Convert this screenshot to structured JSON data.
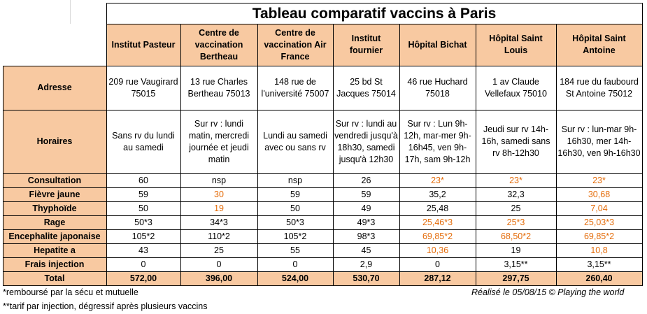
{
  "title": "Tableau comparatif vaccins à Paris",
  "columns": [
    "Institut Pasteur",
    "Centre de vaccination Bertheau",
    "Centre de vaccination Air France",
    "Institut fournier",
    "Hôpital Bichat",
    "Hôpital Saint Louis",
    "Hôpital Saint Antoine"
  ],
  "rows": [
    {
      "label": "Adresse",
      "cells": [
        {
          "text": "209 rue Vaugirard 75015"
        },
        {
          "text": "13 rue Charles Bertheau 75013"
        },
        {
          "text": "148 rue de l'université 75007"
        },
        {
          "text": "25 bd St Jacques 75014"
        },
        {
          "text": "46 rue Huchard 75018"
        },
        {
          "text": "1 av Claude Vellefaux 75010"
        },
        {
          "text": "184 rue du faubourd St Antoine 75012"
        }
      ]
    },
    {
      "label": "Horaires",
      "cells": [
        {
          "text": "Sans rv du lundi au samedi"
        },
        {
          "text": "Sur rv : lundi matin, mercredi journée et jeudi matin"
        },
        {
          "text": "Lundi au samedi avec ou sans rv"
        },
        {
          "text": "Sur rv : lundi au vendredi jusqu'à 18h30, samedi jusqu'à 12h30"
        },
        {
          "text": "Sur rv : Lun 9h-12h, mar-mer 9h-16h45, ven 9h-17h, sam 9h-12h"
        },
        {
          "text": "Jeudi sur rv 14h-16h, samedi sans rv 8h-12h30"
        },
        {
          "text": "Sur rv : lun-mar 9h-16h30, mer 14h-16h30, ven 9h-16h30"
        }
      ]
    },
    {
      "label": "Consultation",
      "cells": [
        {
          "text": "60"
        },
        {
          "text": "nsp"
        },
        {
          "text": "nsp"
        },
        {
          "text": "26"
        },
        {
          "text": "23*",
          "orange": true
        },
        {
          "text": "23*",
          "orange": true
        },
        {
          "text": "23*",
          "orange": true
        }
      ]
    },
    {
      "label": "Fièvre jaune",
      "cells": [
        {
          "text": "59"
        },
        {
          "text": "30",
          "orange": true
        },
        {
          "text": "59"
        },
        {
          "text": "59"
        },
        {
          "text": "35,2"
        },
        {
          "text": "32,3"
        },
        {
          "text": "30,68",
          "orange": true
        }
      ]
    },
    {
      "label": "Thyphoïde",
      "cells": [
        {
          "text": "50"
        },
        {
          "text": "19",
          "orange": true
        },
        {
          "text": "50"
        },
        {
          "text": "49"
        },
        {
          "text": "25,48"
        },
        {
          "text": "25"
        },
        {
          "text": "7,04",
          "orange": true
        }
      ]
    },
    {
      "label": "Rage",
      "cells": [
        {
          "text": "50*3"
        },
        {
          "text": "34*3"
        },
        {
          "text": "50*3"
        },
        {
          "text": "49*3"
        },
        {
          "text": "25,46*3",
          "orange": true
        },
        {
          "text": "25*3",
          "orange": true
        },
        {
          "text": "25,03*3",
          "orange": true
        }
      ]
    },
    {
      "label": "Encephalite japonaise",
      "cells": [
        {
          "text": "105*2"
        },
        {
          "text": "110*2"
        },
        {
          "text": "105*2"
        },
        {
          "text": "98*3"
        },
        {
          "text": "69,85*2",
          "orange": true
        },
        {
          "text": "68,50*2",
          "orange": true
        },
        {
          "text": "69,85*2",
          "orange": true
        }
      ]
    },
    {
      "label": "Hepatite a",
      "cells": [
        {
          "text": "43"
        },
        {
          "text": "25"
        },
        {
          "text": "55"
        },
        {
          "text": "45"
        },
        {
          "text": "10,36",
          "orange": true
        },
        {
          "text": "19"
        },
        {
          "text": "10,8",
          "orange": true
        }
      ]
    },
    {
      "label": "Frais injection",
      "cells": [
        {
          "text": "0"
        },
        {
          "text": "0"
        },
        {
          "text": "0"
        },
        {
          "text": "2,9"
        },
        {
          "text": "0"
        },
        {
          "text": "3,15**"
        },
        {
          "text": "3,15**"
        }
      ]
    },
    {
      "label": "Total",
      "total": true,
      "cells": [
        {
          "text": "572,00"
        },
        {
          "text": "396,00"
        },
        {
          "text": "524,00"
        },
        {
          "text": "530,70"
        },
        {
          "text": "287,12"
        },
        {
          "text": "297,75"
        },
        {
          "text": "260,40"
        }
      ]
    }
  ],
  "footnotes": [
    "*remboursé par la sécu et mutuelle",
    "**tarif par injection, dégressif après plusieurs vaccins"
  ],
  "credit": "Réalisé le 05/08/15 © Playing the world",
  "colors": {
    "header_bg": "#f8c9a1",
    "highlight": "#e46c0a"
  }
}
